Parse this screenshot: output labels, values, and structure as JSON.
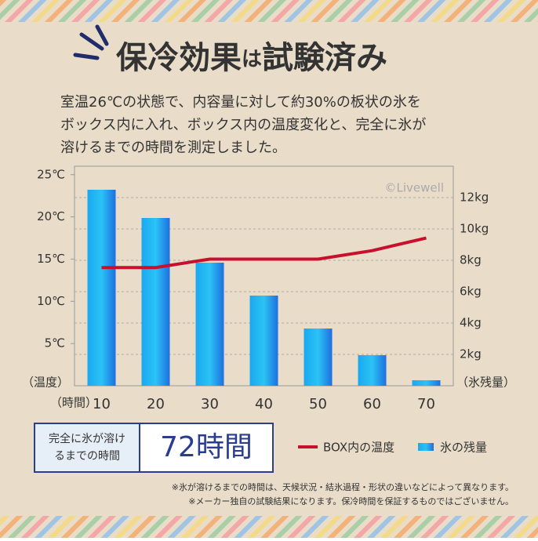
{
  "title_main": "保冷効果",
  "title_particle": "は",
  "title_end": "試験済み",
  "description": [
    "室温26℃の状態で、内容量に対して約30%の板状の氷を",
    "ボックス内に入れ、ボックス内の温度変化と、完全に氷が",
    "溶けるまでの時間を測定しました。"
  ],
  "chart_data": {
    "type": "combo",
    "categories": [
      "10",
      "20",
      "30",
      "40",
      "50",
      "60",
      "70"
    ],
    "x_label": "（時間）",
    "y_label": "（温度）",
    "y2_label": "（氷残量）",
    "watermark": "©Livewell",
    "ylim": [
      0,
      26
    ],
    "yticks": [
      {
        "value": 5,
        "label": "5℃"
      },
      {
        "value": 10,
        "label": "10℃"
      },
      {
        "value": 15,
        "label": "15℃"
      },
      {
        "value": 20,
        "label": "20℃"
      },
      {
        "value": 25,
        "label": "25℃"
      }
    ],
    "y2lim": [
      0,
      14
    ],
    "y2ticks": [
      {
        "value": 2,
        "label": "2kg"
      },
      {
        "value": 4,
        "label": "4kg"
      },
      {
        "value": 6,
        "label": "6kg"
      },
      {
        "value": 8,
        "label": "8kg"
      },
      {
        "value": 10,
        "label": "10kg"
      },
      {
        "value": 12,
        "label": "12kg"
      }
    ],
    "grid": true,
    "series": [
      {
        "name": "BOX内の温度",
        "type": "line",
        "color": "#c8102e",
        "values": [
          14.0,
          14.0,
          15.0,
          15.0,
          15.0,
          16.0,
          17.5
        ]
      },
      {
        "name": "氷の残量",
        "type": "bar",
        "axis": "y2",
        "color": "#1e90f0",
        "values": [
          12.5,
          10.7,
          7.85,
          5.75,
          3.65,
          1.95,
          0.35
        ]
      }
    ]
  },
  "summary": {
    "label": [
      "完全に氷が溶け",
      "るまでの時間"
    ],
    "value": "72時間"
  },
  "notes": [
    "※氷が溶けるまでの時間は、天候状況・結氷過程・形状の違いなどによって異なります。",
    "※メーカー独自の試験結果になります。保冷時間を保証するものではございません。"
  ]
}
